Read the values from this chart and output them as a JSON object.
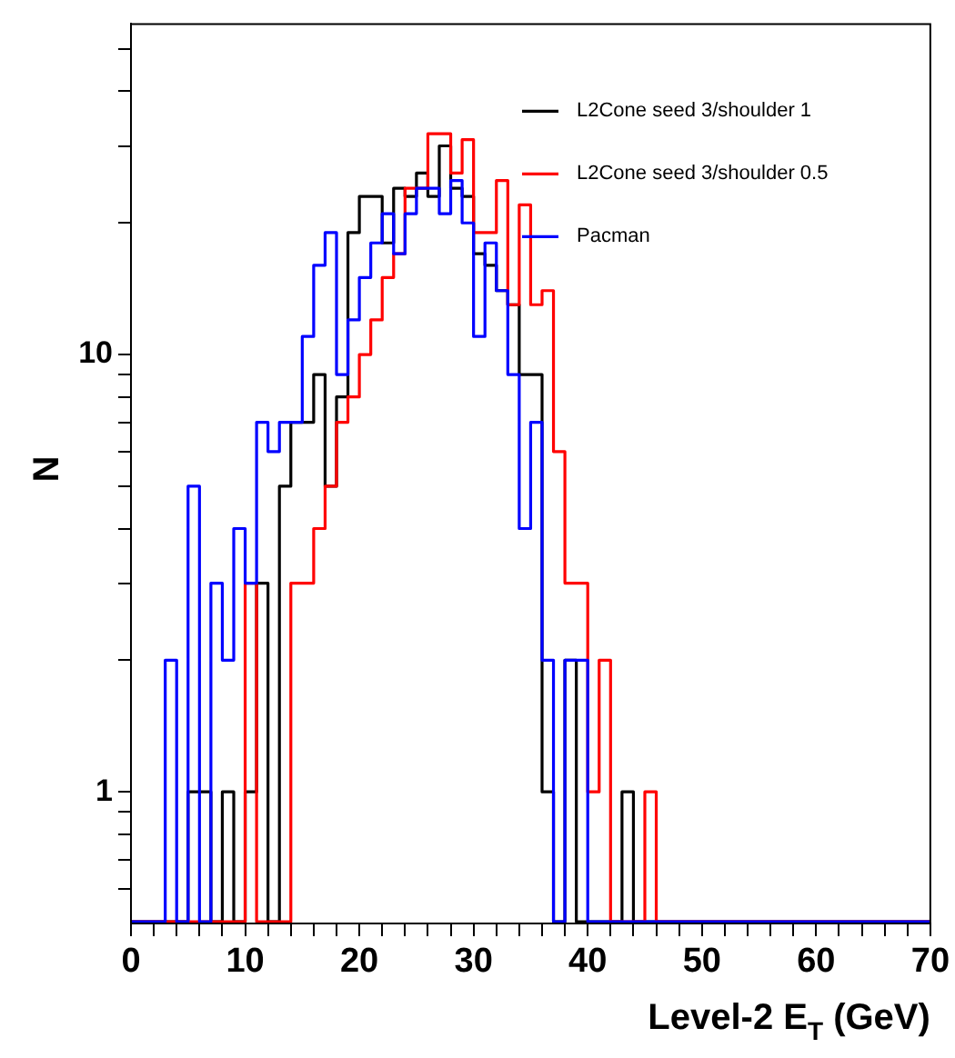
{
  "chart_data": {
    "type": "histogram",
    "xlabel": "Level-2 E$_{T}$ (GeV)",
    "ylabel": "N",
    "log": true,
    "legend": "top right",
    "bins": [
      0,
      1,
      2,
      3,
      4,
      5,
      6,
      7,
      8,
      9,
      10,
      11,
      12,
      13,
      14,
      15,
      16,
      17,
      18,
      19,
      20,
      21,
      22,
      23,
      24,
      25,
      26,
      27,
      28,
      29,
      30,
      31,
      32,
      33,
      34,
      35,
      36,
      37,
      38,
      39,
      40,
      41,
      42,
      43,
      44,
      45,
      46,
      47,
      48,
      49,
      50,
      51,
      52,
      53,
      54,
      55,
      56,
      57,
      58,
      59,
      60,
      61,
      62,
      63,
      64,
      65,
      66,
      67,
      68,
      69,
      70
    ],
    "series": [
      {
        "name": "L2Cone seed 3/shoulder 1",
        "color": "#000000",
        "values": [
          null,
          null,
          null,
          null,
          null,
          1,
          1,
          null,
          1,
          null,
          1,
          3,
          null,
          5,
          7,
          7,
          9,
          5,
          8,
          19,
          23,
          23,
          18,
          24,
          23,
          26,
          23,
          30,
          24,
          23,
          17,
          16,
          14,
          13,
          9,
          9,
          1,
          null,
          2,
          null,
          null,
          null,
          null,
          1,
          null,
          null,
          null,
          null,
          null,
          null,
          null,
          null,
          null,
          null,
          null,
          null,
          null,
          null,
          null,
          null,
          null,
          null,
          null,
          null,
          null,
          null,
          null,
          null,
          null,
          null
        ]
      },
      {
        "name": "L2Cone seed 3/shoulder 0.5",
        "color": "#ff0000",
        "values": [
          null,
          null,
          null,
          null,
          null,
          null,
          null,
          null,
          null,
          null,
          3,
          null,
          null,
          null,
          3,
          3,
          4,
          5,
          7,
          8,
          10,
          12,
          15,
          17,
          24,
          24,
          32,
          32,
          26,
          31,
          19,
          19,
          25,
          13,
          22,
          13,
          14,
          6,
          3,
          3,
          1,
          2,
          null,
          null,
          null,
          1,
          null,
          null,
          null,
          null,
          null,
          null,
          null,
          null,
          null,
          null,
          null,
          null,
          null,
          null,
          null,
          null,
          null,
          null,
          null,
          null,
          null,
          null,
          null,
          null
        ]
      },
      {
        "name": "Pacman",
        "color": "#0000ff",
        "values": [
          null,
          null,
          null,
          2,
          null,
          5,
          null,
          3,
          2,
          4,
          3,
          7,
          6,
          7,
          7,
          11,
          16,
          19,
          9,
          12,
          15,
          18,
          21,
          17,
          21,
          24,
          24,
          21,
          25,
          20,
          11,
          18,
          14,
          9,
          4,
          7,
          2,
          null,
          2,
          2,
          null,
          null,
          null,
          null,
          null,
          null,
          null,
          null,
          null,
          null,
          null,
          null,
          null,
          null,
          null,
          null,
          null,
          null,
          null,
          null,
          null,
          null,
          null,
          null,
          null,
          null,
          null,
          null,
          null,
          null
        ]
      }
    ],
    "xlim": [
      0,
      70
    ],
    "xticks": [
      0,
      {
        "value": 2,
        "label": null
      },
      {
        "value": 4,
        "label": null
      },
      {
        "value": 6,
        "label": null
      },
      {
        "value": 8,
        "label": null
      },
      10,
      {
        "value": 12,
        "label": null
      },
      {
        "value": 14,
        "label": null
      },
      {
        "value": 16,
        "label": null
      },
      {
        "value": 18,
        "label": null
      },
      20,
      {
        "value": 22,
        "label": null
      },
      {
        "value": 24,
        "label": null
      },
      {
        "value": 26,
        "label": null
      },
      {
        "value": 28,
        "label": null
      },
      30,
      {
        "value": 32,
        "label": null
      },
      {
        "value": 34,
        "label": null
      },
      {
        "value": 36,
        "label": null
      },
      {
        "value": 38,
        "label": null
      },
      40,
      {
        "value": 42,
        "label": null
      },
      {
        "value": 44,
        "label": null
      },
      {
        "value": 46,
        "label": null
      },
      {
        "value": 48,
        "label": null
      },
      50,
      {
        "value": 52,
        "label": null
      },
      {
        "value": 54,
        "label": null
      },
      {
        "value": 56,
        "label": null
      },
      {
        "value": 58,
        "label": null
      },
      60,
      {
        "value": 62,
        "label": null
      },
      {
        "value": 64,
        "label": null
      },
      {
        "value": 66,
        "label": null
      },
      {
        "value": 68,
        "label": null
      },
      70
    ],
    "ylim": [
      0.5,
      57
    ],
    "yticks": [
      {
        "value": 0.6,
        "label": null
      },
      {
        "value": 0.7,
        "label": null
      },
      {
        "value": 0.8,
        "label": null
      },
      {
        "value": 0.9,
        "label": null
      },
      1,
      {
        "value": 2,
        "label": null
      },
      {
        "value": 3,
        "label": null
      },
      {
        "value": 4,
        "label": null
      },
      {
        "value": 5,
        "label": null
      },
      {
        "value": 6,
        "label": null
      },
      {
        "value": 7,
        "label": null
      },
      {
        "value": 8,
        "label": null
      },
      {
        "value": 9,
        "label": null
      },
      10,
      {
        "value": 20,
        "label": null
      },
      {
        "value": 30,
        "label": null
      },
      {
        "value": 40,
        "label": null
      },
      {
        "value": 50,
        "label": null
      }
    ]
  }
}
